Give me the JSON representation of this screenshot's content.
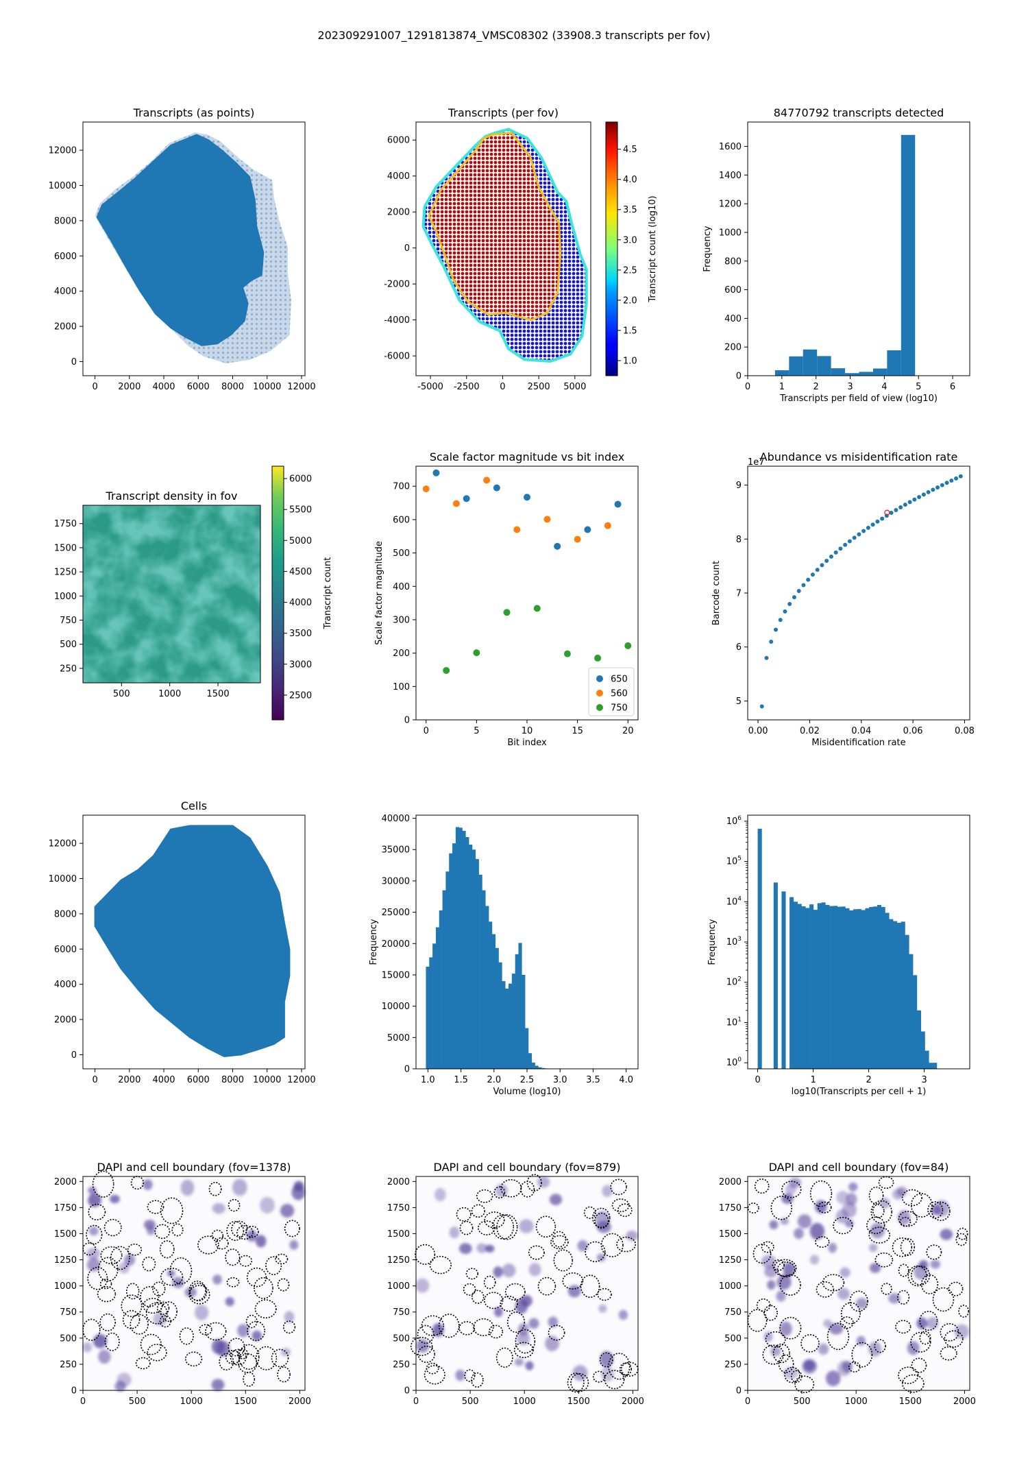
{
  "figure": {
    "suptitle": "202309291007_1291813874_VMSC08302 (33908.3 transcripts per fov)"
  },
  "colors": {
    "default_blue": "#1f77b4",
    "orange": "#ff7f0e",
    "green": "#2ca02c",
    "dapi_purple": "#5a4aa0",
    "boundary": "#000000"
  },
  "chart_data": [
    {
      "id": "transcripts_points",
      "type": "scatter",
      "title": "Transcripts (as points)",
      "xlabel": "",
      "ylabel": "",
      "xlim": [
        -700,
        12200
      ],
      "ylim": [
        -800,
        13600
      ],
      "xticks": [
        0,
        2000,
        4000,
        6000,
        8000,
        10000,
        12000
      ],
      "yticks": [
        0,
        2000,
        4000,
        6000,
        8000,
        10000,
        12000
      ],
      "shape_outline": [
        [
          5800,
          13000
        ],
        [
          6500,
          12900
        ],
        [
          7300,
          12500
        ],
        [
          8300,
          11600
        ],
        [
          9200,
          10900
        ],
        [
          10300,
          10300
        ],
        [
          10400,
          9300
        ],
        [
          10700,
          8000
        ],
        [
          11200,
          6500
        ],
        [
          11200,
          5000
        ],
        [
          11400,
          3500
        ],
        [
          11300,
          1500
        ],
        [
          10200,
          600
        ],
        [
          9000,
          100
        ],
        [
          7600,
          -100
        ],
        [
          6300,
          300
        ],
        [
          5400,
          900
        ],
        [
          4500,
          1800
        ],
        [
          3500,
          2700
        ],
        [
          2500,
          4100
        ],
        [
          1600,
          5600
        ],
        [
          800,
          6900
        ],
        [
          0,
          8300
        ],
        [
          300,
          9000
        ],
        [
          1200,
          9800
        ],
        [
          2200,
          10500
        ],
        [
          3300,
          11400
        ],
        [
          4300,
          12400
        ]
      ],
      "dense_outline": [
        [
          5900,
          12900
        ],
        [
          6600,
          12600
        ],
        [
          7400,
          12000
        ],
        [
          8200,
          11300
        ],
        [
          9000,
          10500
        ],
        [
          9300,
          9200
        ],
        [
          9400,
          7700
        ],
        [
          9800,
          6200
        ],
        [
          9700,
          4900
        ],
        [
          9100,
          4600
        ],
        [
          8600,
          4200
        ],
        [
          8900,
          3300
        ],
        [
          8700,
          2300
        ],
        [
          7900,
          1500
        ],
        [
          7100,
          1000
        ],
        [
          6200,
          900
        ],
        [
          5200,
          1400
        ],
        [
          4400,
          1900
        ],
        [
          3500,
          2700
        ],
        [
          2600,
          4000
        ],
        [
          1700,
          5500
        ],
        [
          900,
          6900
        ],
        [
          100,
          8200
        ],
        [
          400,
          8900
        ],
        [
          1300,
          9600
        ],
        [
          2300,
          10400
        ],
        [
          3400,
          11400
        ],
        [
          4400,
          12300
        ]
      ]
    },
    {
      "id": "transcripts_per_fov",
      "type": "scatter",
      "title": "Transcripts (per fov)",
      "xlabel": "",
      "ylabel": "",
      "xlim": [
        -6000,
        6100
      ],
      "ylim": [
        -7100,
        7000
      ],
      "xticks": [
        -5000,
        -2500,
        0,
        2500,
        5000
      ],
      "yticks": [
        -6000,
        -4000,
        -2000,
        0,
        2000,
        4000,
        6000
      ],
      "colorbar": {
        "label": "Transcript count (log10)",
        "range": [
          0.75,
          4.95
        ],
        "ticks": [
          1.0,
          1.5,
          2.0,
          2.5,
          3.0,
          3.5,
          4.0,
          4.5
        ]
      },
      "tissue_outline": [
        [
          -500,
          6400
        ],
        [
          400,
          6600
        ],
        [
          1700,
          6100
        ],
        [
          2700,
          5000
        ],
        [
          3800,
          3100
        ],
        [
          4400,
          2600
        ],
        [
          4800,
          1300
        ],
        [
          5400,
          -400
        ],
        [
          5800,
          -1200
        ],
        [
          5800,
          -3100
        ],
        [
          5500,
          -4900
        ],
        [
          4700,
          -5900
        ],
        [
          3300,
          -6300
        ],
        [
          1500,
          -6200
        ],
        [
          400,
          -5600
        ],
        [
          -200,
          -4600
        ],
        [
          -1600,
          -4100
        ],
        [
          -3000,
          -2900
        ],
        [
          -4100,
          -1000
        ],
        [
          -4900,
          200
        ],
        [
          -5500,
          1200
        ],
        [
          -5400,
          2300
        ],
        [
          -4600,
          3400
        ],
        [
          -3300,
          4500
        ],
        [
          -2000,
          5600
        ],
        [
          -1200,
          6200
        ]
      ],
      "core_outline": [
        [
          -700,
          6300
        ],
        [
          600,
          6400
        ],
        [
          1900,
          5100
        ],
        [
          2500,
          3400
        ],
        [
          3300,
          2200
        ],
        [
          3900,
          1400
        ],
        [
          4000,
          -300
        ],
        [
          3800,
          -2500
        ],
        [
          3100,
          -3600
        ],
        [
          2000,
          -4000
        ],
        [
          1000,
          -3800
        ],
        [
          200,
          -3600
        ],
        [
          -1000,
          -3700
        ],
        [
          -2400,
          -3000
        ],
        [
          -3400,
          -1800
        ],
        [
          -4100,
          -200
        ],
        [
          -4600,
          900
        ],
        [
          -5100,
          1800
        ],
        [
          -4300,
          3200
        ],
        [
          -3100,
          4300
        ],
        [
          -1900,
          5400
        ],
        [
          -1300,
          6100
        ]
      ]
    },
    {
      "id": "transcripts_hist",
      "type": "bar",
      "title": "84770792 transcripts detected",
      "xlabel": "Transcripts per field of view (log10)",
      "ylabel": "Frequency",
      "xlim": [
        0,
        6.5
      ],
      "ylim": [
        0,
        1770
      ],
      "xticks": [
        0,
        1,
        2,
        3,
        4,
        5,
        6
      ],
      "yticks": [
        0,
        200,
        400,
        600,
        800,
        1000,
        1200,
        1400,
        1600
      ],
      "bin_edges": [
        0.8,
        1.21,
        1.62,
        2.03,
        2.44,
        2.85,
        3.26,
        3.67,
        4.08,
        4.49,
        4.9
      ],
      "values": [
        38,
        135,
        183,
        137,
        52,
        18,
        27,
        50,
        177,
        1680
      ]
    },
    {
      "id": "density_fov",
      "type": "heatmap",
      "title": "Transcript density in fov",
      "xlabel": "",
      "ylabel": "",
      "xlim": [
        100,
        1940
      ],
      "ylim": [
        100,
        1940
      ],
      "xticks": [
        500,
        1000,
        1500
      ],
      "yticks": [
        250,
        500,
        750,
        1000,
        1250,
        1500,
        1750
      ],
      "colorbar": {
        "label": "Transcript count",
        "range": [
          2100,
          6200
        ],
        "ticks": [
          2500,
          3000,
          3500,
          4000,
          4500,
          5000,
          5500,
          6000
        ]
      }
    },
    {
      "id": "scale_factor",
      "type": "scatter",
      "title": "Scale factor magnitude vs bit index",
      "xlabel": "Bit index",
      "ylabel": "Scale factor magnitude",
      "xlim": [
        -1,
        21
      ],
      "ylim": [
        0,
        760
      ],
      "xticks": [
        0,
        5,
        10,
        15,
        20
      ],
      "yticks": [
        0,
        100,
        200,
        300,
        400,
        500,
        600,
        700
      ],
      "legend": "lower-right",
      "series": [
        {
          "name": "650",
          "x": [
            1,
            4,
            7,
            10,
            13,
            16,
            19
          ],
          "y": [
            740,
            663,
            695,
            667,
            520,
            570,
            646
          ]
        },
        {
          "name": "560",
          "x": [
            0,
            3,
            6,
            9,
            12,
            15,
            18
          ],
          "y": [
            692,
            648,
            718,
            570,
            601,
            541,
            582
          ]
        },
        {
          "name": "750",
          "x": [
            2,
            5,
            8,
            11,
            14,
            17,
            20
          ],
          "y": [
            148,
            201,
            322,
            334,
            198,
            185,
            222
          ]
        }
      ]
    },
    {
      "id": "abundance_misid",
      "type": "scatter",
      "title": "Abundance vs misidentification rate",
      "xlabel": "Misidentification rate",
      "ylabel": "Barcode count",
      "offset_text": "1e7",
      "xlim": [
        -0.004,
        0.082
      ],
      "ylim": [
        4.65,
        9.35
      ],
      "xticks": [
        0.0,
        0.02,
        0.04,
        0.06,
        0.08
      ],
      "xtick_labels": [
        "0.00",
        "0.02",
        "0.04",
        "0.06",
        "0.08"
      ],
      "yticks": [
        5,
        6,
        7,
        8,
        9
      ],
      "highlight": {
        "x": 0.05,
        "y": 8.49
      }
    },
    {
      "id": "cells",
      "type": "scatter",
      "title": "Cells",
      "xlabel": "",
      "ylabel": "",
      "xlim": [
        -700,
        12200
      ],
      "ylim": [
        -800,
        13600
      ],
      "xticks": [
        0,
        2000,
        4000,
        6000,
        8000,
        10000,
        12000
      ],
      "yticks": [
        0,
        2000,
        4000,
        6000,
        8000,
        10000,
        12000
      ],
      "shape_outline": [
        [
          4400,
          12800
        ],
        [
          5500,
          13000
        ],
        [
          8000,
          13000
        ],
        [
          9000,
          12300
        ],
        [
          10000,
          10700
        ],
        [
          10700,
          9200
        ],
        [
          11000,
          7500
        ],
        [
          11300,
          6000
        ],
        [
          11300,
          4500
        ],
        [
          11000,
          3000
        ],
        [
          11000,
          1000
        ],
        [
          10400,
          600
        ],
        [
          9500,
          300
        ],
        [
          8500,
          0
        ],
        [
          7500,
          -100
        ],
        [
          6500,
          400
        ],
        [
          5500,
          1000
        ],
        [
          4500,
          1800
        ],
        [
          3500,
          2600
        ],
        [
          2500,
          3700
        ],
        [
          1500,
          4900
        ],
        [
          800,
          6000
        ],
        [
          0,
          7300
        ],
        [
          0,
          8400
        ],
        [
          600,
          9000
        ],
        [
          1500,
          9900
        ],
        [
          2500,
          10500
        ],
        [
          3400,
          11300
        ]
      ]
    },
    {
      "id": "volume_hist",
      "type": "bar",
      "title": "",
      "xlabel": "Volume (log10)",
      "ylabel": "Frequency",
      "xlim": [
        0.82,
        4.18
      ],
      "ylim": [
        0,
        40500
      ],
      "xticks": [
        1.0,
        1.5,
        2.0,
        2.5,
        3.0,
        3.5,
        4.0
      ],
      "xtick_labels": [
        "1.0",
        "1.5",
        "2.0",
        "2.5",
        "3.0",
        "3.5",
        "4.0"
      ],
      "yticks": [
        0,
        5000,
        10000,
        15000,
        20000,
        25000,
        30000,
        35000,
        40000
      ],
      "bin_start": 0.97,
      "bin_width": 0.05,
      "values": [
        16300,
        17800,
        20000,
        22600,
        25300,
        28500,
        31500,
        34400,
        36000,
        38600,
        38500,
        38000,
        37000,
        35800,
        35000,
        33500,
        31000,
        28500,
        26000,
        23500,
        21500,
        19300,
        17000,
        14000,
        12800,
        13600,
        15200,
        18300,
        20100,
        15000,
        6500,
        2500,
        1000,
        500,
        250,
        120,
        60,
        30,
        15,
        8
      ]
    },
    {
      "id": "transcripts_per_cell_hist",
      "type": "bar",
      "title": "",
      "xlabel": "log10(Transcripts per cell + 1)",
      "ylabel": "Frequency",
      "log_y": true,
      "xlim": [
        -0.18,
        3.82
      ],
      "ylim_log10": [
        -0.15,
        6.15
      ],
      "xticks": [
        0,
        1,
        2,
        3
      ],
      "yticks_exp": [
        0,
        1,
        2,
        3,
        4,
        5,
        6
      ],
      "bin_width": 0.0717,
      "bin_start": 0.0,
      "values": [
        650000,
        0,
        0,
        0,
        30000,
        0,
        18000,
        0,
        13000,
        10000,
        8800,
        7700,
        7000,
        8600,
        6300,
        9200,
        9600,
        8300,
        7800,
        7900,
        7500,
        7600,
        6900,
        6100,
        6500,
        6600,
        6200,
        6900,
        7400,
        7600,
        8300,
        7400,
        5300,
        3700,
        3300,
        3000,
        3200,
        1500,
        500,
        150,
        20,
        6,
        2,
        1,
        1
      ]
    },
    {
      "id": "dapi_1378",
      "type": "heatmap",
      "title": "DAPI and cell boundary (fov=1378)",
      "xlabel": "",
      "ylabel": "",
      "xlim": [
        0,
        2048
      ],
      "ylim": [
        0,
        2048
      ],
      "xticks": [
        0,
        500,
        1000,
        1500,
        2000
      ],
      "yticks": [
        0,
        250,
        500,
        750,
        1000,
        1250,
        1500,
        1750,
        2000
      ]
    },
    {
      "id": "dapi_879",
      "type": "heatmap",
      "title": "DAPI and cell boundary (fov=879)",
      "xlabel": "",
      "ylabel": "",
      "xlim": [
        0,
        2048
      ],
      "ylim": [
        0,
        2048
      ],
      "xticks": [
        0,
        500,
        1000,
        1500,
        2000
      ],
      "yticks": [
        0,
        250,
        500,
        750,
        1000,
        1250,
        1500,
        1750,
        2000
      ]
    },
    {
      "id": "dapi_84",
      "type": "heatmap",
      "title": "DAPI and cell boundary (fov=84)",
      "xlabel": "",
      "ylabel": "",
      "xlim": [
        0,
        2048
      ],
      "ylim": [
        0,
        2048
      ],
      "xticks": [
        0,
        500,
        1000,
        1500,
        2000
      ],
      "yticks": [
        0,
        250,
        500,
        750,
        1000,
        1250,
        1500,
        1750,
        2000
      ]
    }
  ]
}
